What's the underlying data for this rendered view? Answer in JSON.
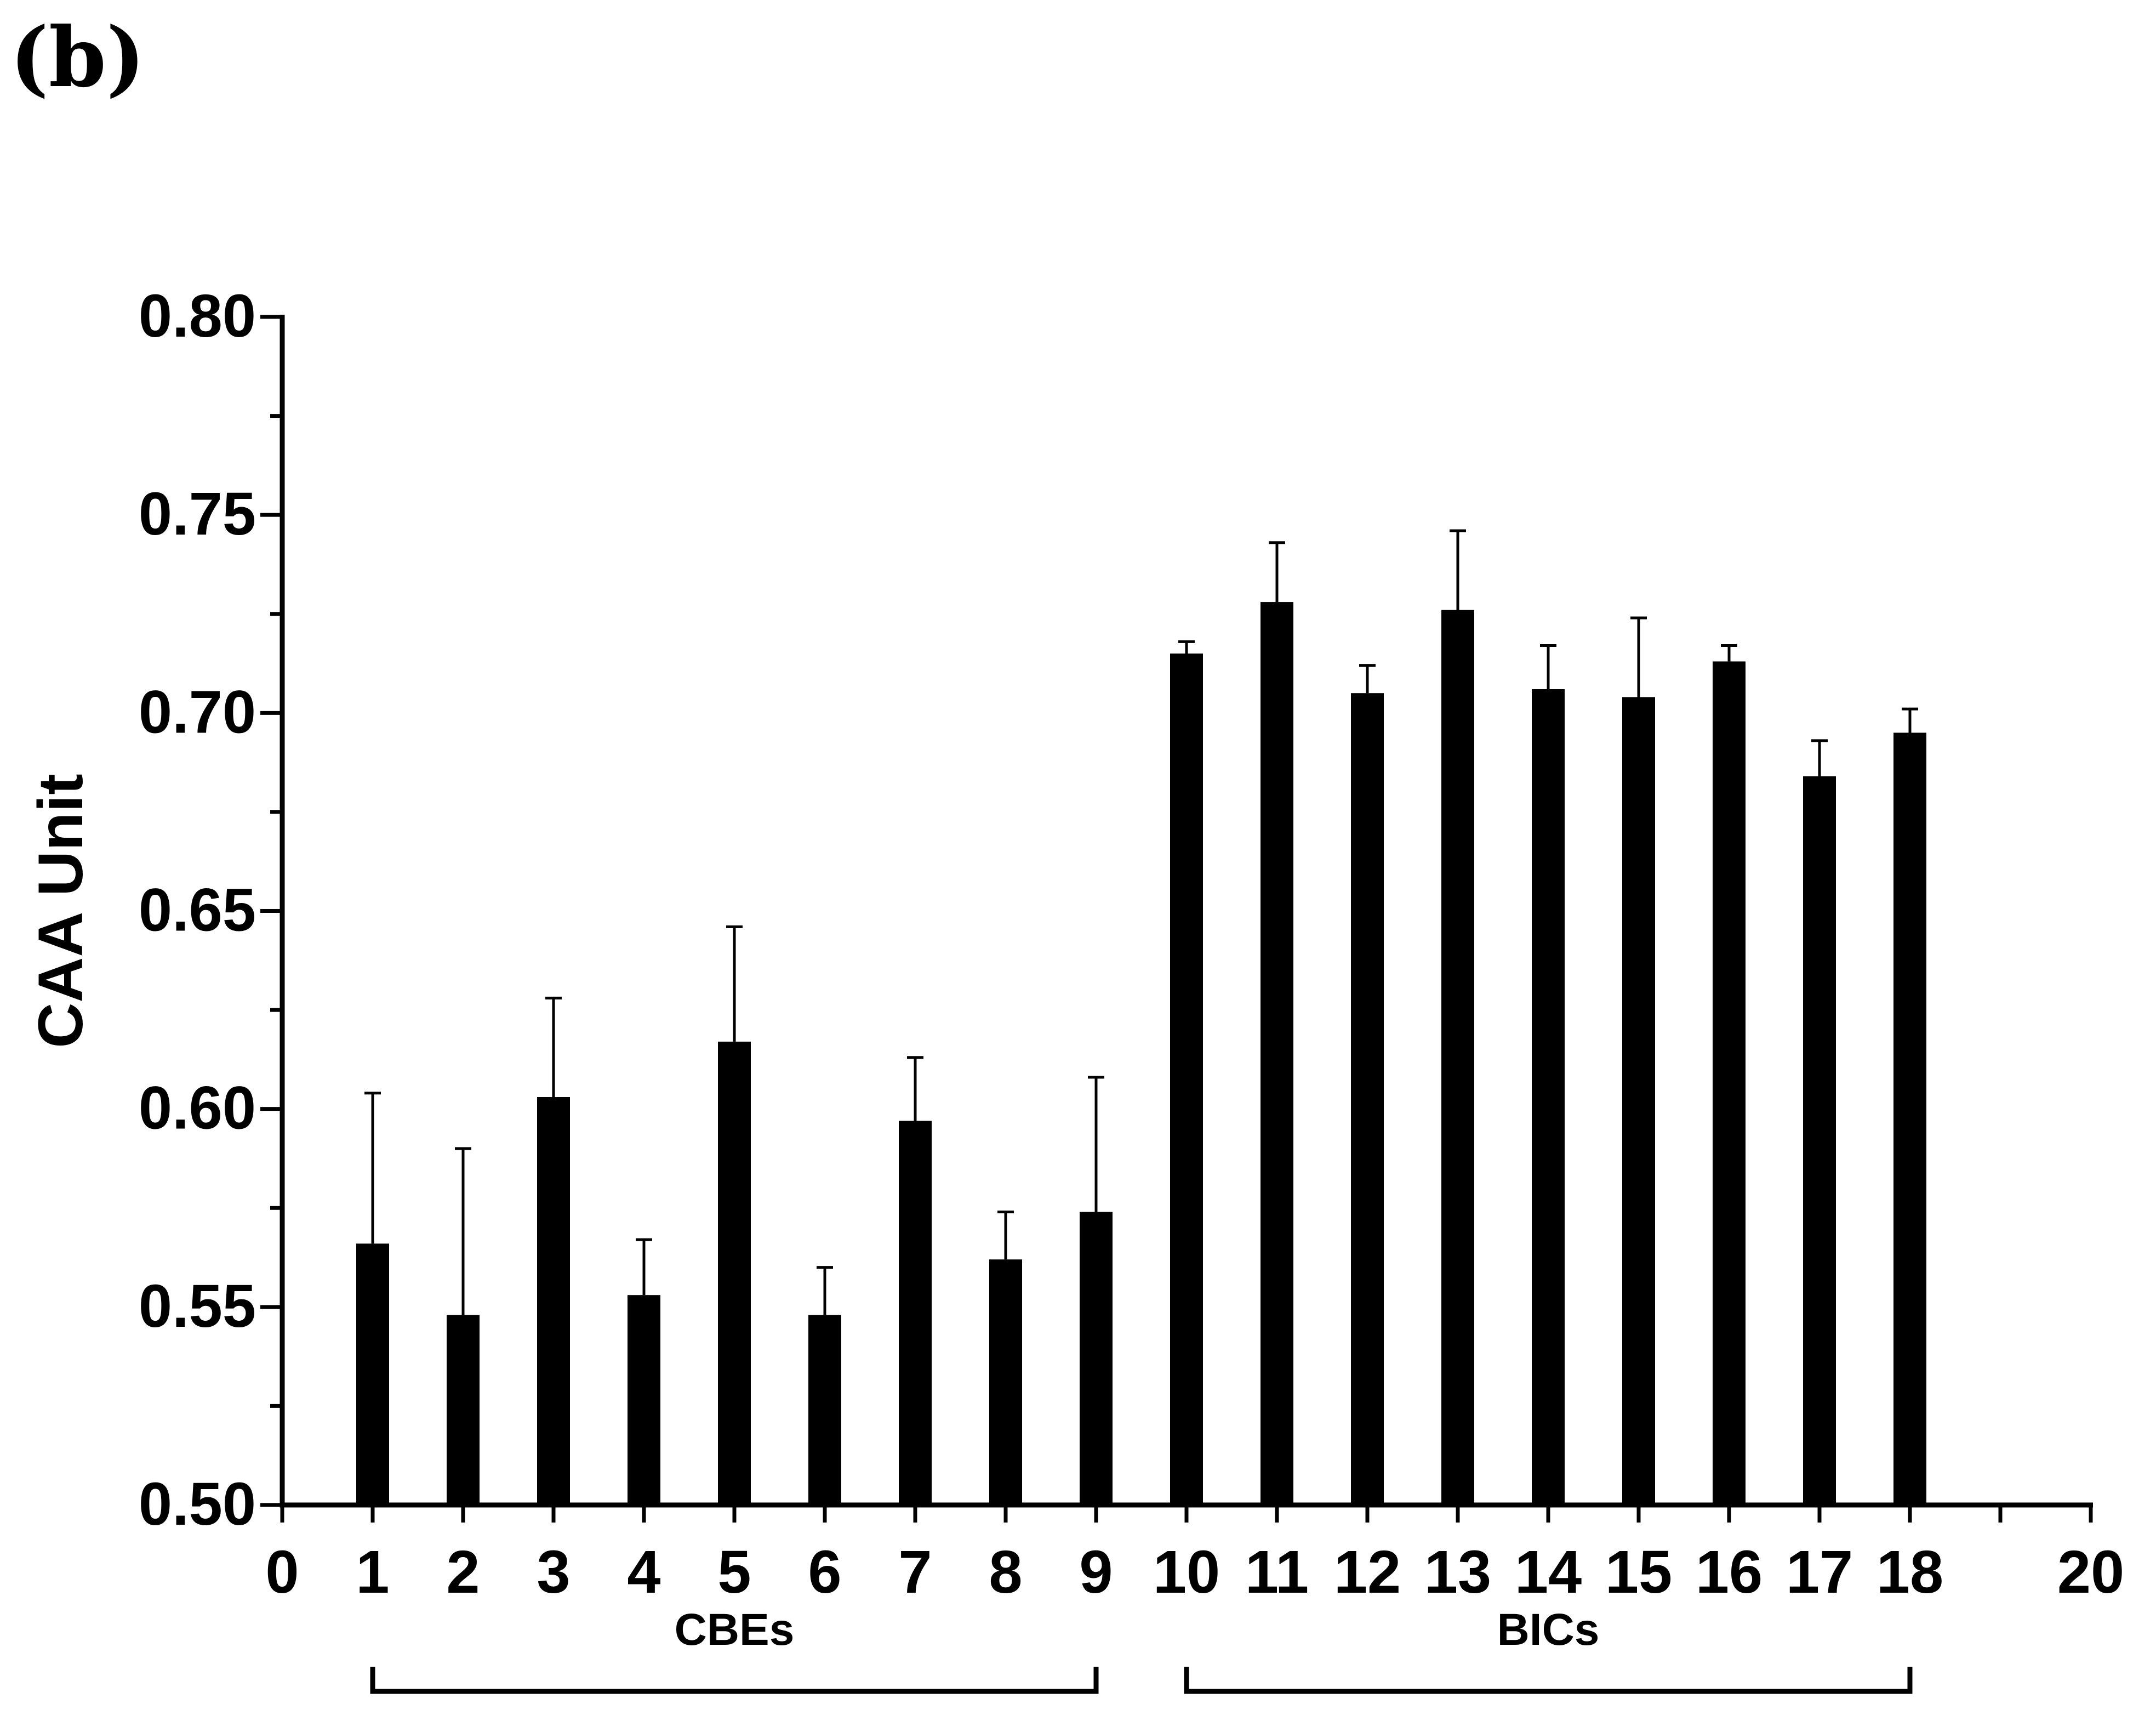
{
  "figure_label": "(b)",
  "chart_data": {
    "type": "bar",
    "ylabel": "CAA Unit",
    "xlabel": "",
    "ylim": [
      0.5,
      0.8
    ],
    "xlim": [
      0,
      20
    ],
    "x_ticks": [
      "0",
      "1",
      "2",
      "3",
      "4",
      "5",
      "6",
      "7",
      "8",
      "9",
      "10",
      "11",
      "12",
      "13",
      "14",
      "15",
      "16",
      "17",
      "18",
      "20"
    ],
    "y_ticks": [
      "0.50",
      "0.55",
      "0.60",
      "0.65",
      "0.70",
      "0.75",
      "0.80"
    ],
    "bar_color": "#000000",
    "bars": [
      {
        "x": 1,
        "value": 0.566,
        "error": 0.038
      },
      {
        "x": 2,
        "value": 0.548,
        "error": 0.042
      },
      {
        "x": 3,
        "value": 0.603,
        "error": 0.025
      },
      {
        "x": 4,
        "value": 0.553,
        "error": 0.014
      },
      {
        "x": 5,
        "value": 0.617,
        "error": 0.029
      },
      {
        "x": 6,
        "value": 0.548,
        "error": 0.012
      },
      {
        "x": 7,
        "value": 0.597,
        "error": 0.016
      },
      {
        "x": 8,
        "value": 0.562,
        "error": 0.012
      },
      {
        "x": 9,
        "value": 0.574,
        "error": 0.034
      },
      {
        "x": 10,
        "value": 0.715,
        "error": 0.003
      },
      {
        "x": 11,
        "value": 0.728,
        "error": 0.015
      },
      {
        "x": 12,
        "value": 0.705,
        "error": 0.007
      },
      {
        "x": 13,
        "value": 0.726,
        "error": 0.02
      },
      {
        "x": 14,
        "value": 0.706,
        "error": 0.011
      },
      {
        "x": 15,
        "value": 0.704,
        "error": 0.02
      },
      {
        "x": 16,
        "value": 0.713,
        "error": 0.004
      },
      {
        "x": 17,
        "value": 0.684,
        "error": 0.009
      },
      {
        "x": 18,
        "value": 0.695,
        "error": 0.006
      }
    ],
    "groups": [
      {
        "label": "CBEs",
        "from": 1,
        "to": 9
      },
      {
        "label": "BICs",
        "from": 10,
        "to": 18
      }
    ]
  }
}
